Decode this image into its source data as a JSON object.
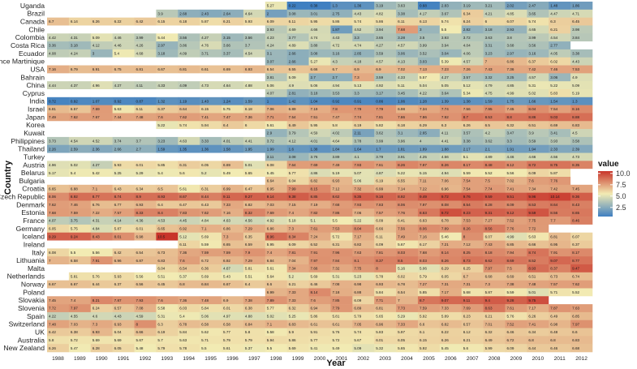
{
  "chart_data": {
    "type": "heatmap",
    "title": "",
    "xlabel": "Year",
    "ylabel": "Country",
    "legend_title": "value",
    "legend_ticks": [
      2.5,
      5.0,
      7.5,
      10.0
    ],
    "legend_tick_labels": [
      "2.5",
      "5.0",
      "7.5",
      "10.0"
    ],
    "value_range": [
      0.5,
      10.5
    ],
    "colors": {
      "low": "#3f7fc1",
      "mid": "#f2ebb3",
      "high": "#c8342a"
    },
    "years": [
      "1988",
      "1989",
      "1990",
      "1991",
      "1992",
      "1993",
      "1994",
      "1995",
      "1996",
      "1997",
      "1998",
      "1999",
      "2000",
      "2001",
      "2002",
      "2003",
      "2004",
      "2005",
      "2006",
      "2007",
      "2008",
      "2009",
      "2010",
      "2011",
      "2012"
    ],
    "countries": [
      "Uganda",
      "Brazil",
      "Canada",
      "Chile",
      "Colombia",
      "Costa Rica",
      "Ecuador",
      "France Martinique",
      "USA",
      "Bahrain",
      "China",
      "Cyprus",
      "India",
      "Israel",
      "Japan",
      "Korea",
      "Kuwait",
      "Philippines",
      "Thailand",
      "Turkey",
      "Austria",
      "Belarus",
      "Bulgaria",
      "Croatia",
      "Czech Republic",
      "Denmark",
      "Estonia",
      "France",
      "Germany",
      "Iceland",
      "Ireland",
      "Italy",
      "Lithuania",
      "Malta",
      "Netherlands",
      "Norway",
      "Poland",
      "Slovakia",
      "Slovenia",
      "Spain",
      "Switzerland",
      "UK",
      "Australia",
      "New Zealand"
    ],
    "values": [
      [
        null,
        null,
        null,
        null,
        null,
        null,
        null,
        null,
        null,
        null,
        null,
        null,
        null,
        null,
        null,
        null,
        null,
        null,
        null,
        null,
        null,
        null,
        null,
        null,
        null
      ],
      [
        null,
        null,
        null,
        null,
        null,
        null,
        null,
        null,
        null,
        null,
        null,
        null,
        null,
        null,
        null,
        null,
        null,
        null,
        null,
        null,
        null,
        null,
        null,
        null,
        null
      ],
      [
        null,
        null,
        null,
        null,
        null,
        null,
        null,
        null,
        null,
        null,
        null,
        null,
        null,
        null,
        null,
        null,
        null,
        null,
        null,
        null,
        null,
        null,
        null,
        null,
        null
      ],
      [
        null,
        null,
        null,
        null,
        null,
        null,
        null,
        null,
        null,
        null,
        null,
        null,
        null,
        null,
        null,
        null,
        null,
        null,
        null,
        null,
        null,
        null,
        null,
        null,
        null
      ],
      [
        null,
        null,
        null,
        null,
        null,
        null,
        null,
        null,
        null,
        null,
        null,
        null,
        null,
        null,
        null,
        null,
        null,
        null,
        null,
        null,
        null,
        null,
        null,
        null,
        null
      ],
      [
        null,
        null,
        null,
        null,
        null,
        null,
        null,
        null,
        null,
        null,
        null,
        null,
        null,
        null,
        null,
        null,
        null,
        null,
        null,
        null,
        null,
        null,
        null,
        null,
        null
      ],
      [
        null,
        null,
        null,
        null,
        null,
        null,
        null,
        null,
        null,
        null,
        null,
        null,
        null,
        null,
        null,
        null,
        null,
        null,
        null,
        null,
        null,
        null,
        null,
        null,
        null
      ],
      [
        null,
        null,
        null,
        null,
        null,
        null,
        null,
        null,
        null,
        null,
        null,
        null,
        null,
        null,
        null,
        null,
        null,
        null,
        null,
        null,
        null,
        null,
        null,
        null,
        null
      ],
      [
        null,
        null,
        null,
        null,
        null,
        null,
        null,
        null,
        null,
        null,
        null,
        null,
        null,
        null,
        null,
        null,
        null,
        null,
        null,
        null,
        null,
        null,
        null,
        null,
        null
      ],
      [
        null,
        null,
        null,
        null,
        null,
        null,
        null,
        null,
        null,
        null,
        null,
        null,
        null,
        null,
        null,
        null,
        null,
        null,
        null,
        null,
        null,
        null,
        null,
        null,
        null
      ],
      [
        null,
        null,
        null,
        null,
        null,
        null,
        null,
        null,
        null,
        null,
        null,
        null,
        null,
        null,
        null,
        null,
        null,
        null,
        null,
        null,
        null,
        null,
        null,
        null,
        null
      ],
      [
        null,
        null,
        null,
        null,
        null,
        null,
        null,
        null,
        null,
        null,
        null,
        null,
        null,
        null,
        null,
        null,
        null,
        null,
        null,
        null,
        null,
        null,
        null,
        null,
        null
      ],
      [
        null,
        null,
        null,
        null,
        null,
        null,
        null,
        null,
        null,
        null,
        null,
        null,
        null,
        null,
        null,
        null,
        null,
        null,
        null,
        null,
        null,
        null,
        null,
        null,
        null
      ],
      [
        null,
        null,
        null,
        null,
        null,
        null,
        null,
        null,
        null,
        null,
        null,
        null,
        null,
        null,
        null,
        null,
        null,
        null,
        null,
        null,
        null,
        null,
        null,
        null,
        null
      ],
      [
        null,
        null,
        null,
        null,
        null,
        null,
        null,
        null,
        null,
        null,
        null,
        null,
        null,
        null,
        null,
        null,
        null,
        null,
        null,
        null,
        null,
        null,
        null,
        null,
        null
      ],
      [
        null,
        null,
        null,
        null,
        null,
        null,
        null,
        null,
        null,
        null,
        null,
        null,
        null,
        null,
        null,
        null,
        null,
        null,
        null,
        null,
        null,
        null,
        null,
        null,
        null
      ],
      [
        null,
        null,
        null,
        null,
        null,
        null,
        null,
        null,
        null,
        null,
        null,
        null,
        null,
        null,
        null,
        null,
        null,
        null,
        null,
        null,
        null,
        null,
        null,
        null,
        null
      ],
      [
        null,
        null,
        null,
        null,
        null,
        null,
        null,
        null,
        null,
        null,
        null,
        null,
        null,
        null,
        null,
        null,
        null,
        null,
        null,
        null,
        null,
        null,
        null,
        null,
        null
      ],
      [
        null,
        null,
        null,
        null,
        null,
        null,
        null,
        null,
        null,
        null,
        null,
        null,
        null,
        null,
        null,
        null,
        null,
        null,
        null,
        null,
        null,
        null,
        null,
        null,
        null
      ],
      [
        null,
        null,
        null,
        null,
        null,
        null,
        null,
        null,
        null,
        null,
        null,
        null,
        null,
        null,
        null,
        null,
        null,
        null,
        null,
        null,
        null,
        null,
        null,
        null,
        null
      ],
      [
        null,
        null,
        null,
        null,
        null,
        null,
        null,
        null,
        null,
        null,
        null,
        null,
        null,
        null,
        null,
        null,
        null,
        null,
        null,
        null,
        null,
        null,
        null,
        null,
        null
      ],
      [
        null,
        null,
        null,
        null,
        null,
        null,
        null,
        null,
        null,
        null,
        null,
        null,
        null,
        null,
        null,
        null,
        null,
        null,
        null,
        null,
        null,
        null,
        null,
        null,
        null
      ],
      [
        null,
        null,
        null,
        null,
        null,
        null,
        null,
        null,
        null,
        null,
        null,
        null,
        null,
        null,
        null,
        null,
        null,
        null,
        null,
        null,
        null,
        null,
        null,
        null,
        null
      ],
      [
        null,
        null,
        null,
        null,
        null,
        null,
        null,
        null,
        null,
        null,
        null,
        null,
        null,
        null,
        null,
        null,
        null,
        null,
        null,
        null,
        null,
        null,
        null,
        null,
        null
      ],
      [
        null,
        null,
        null,
        null,
        null,
        null,
        null,
        null,
        null,
        null,
        null,
        null,
        null,
        null,
        null,
        null,
        null,
        null,
        null,
        null,
        null,
        null,
        null,
        null,
        null
      ],
      [
        null,
        null,
        null,
        null,
        null,
        null,
        null,
        null,
        null,
        null,
        null,
        null,
        null,
        null,
        null,
        null,
        null,
        null,
        null,
        null,
        null,
        null,
        null,
        null,
        null
      ],
      [
        null,
        null,
        null,
        null,
        null,
        null,
        null,
        null,
        null,
        null,
        null,
        null,
        null,
        null,
        null,
        null,
        null,
        null,
        null,
        null,
        null,
        null,
        null,
        null,
        null
      ],
      [
        null,
        null,
        null,
        null,
        null,
        null,
        null,
        null,
        null,
        null,
        null,
        null,
        null,
        null,
        null,
        null,
        null,
        null,
        null,
        null,
        null,
        null,
        null,
        null,
        null
      ],
      [
        null,
        null,
        null,
        null,
        null,
        null,
        null,
        null,
        null,
        null,
        null,
        null,
        null,
        null,
        null,
        null,
        null,
        null,
        null,
        null,
        null,
        null,
        null,
        null,
        null
      ],
      [
        null,
        null,
        null,
        null,
        null,
        null,
        null,
        null,
        null,
        null,
        null,
        null,
        null,
        null,
        null,
        null,
        null,
        null,
        null,
        null,
        null,
        null,
        null,
        null,
        null
      ],
      [
        null,
        null,
        null,
        null,
        null,
        null,
        null,
        null,
        null,
        null,
        null,
        null,
        null,
        null,
        null,
        null,
        null,
        null,
        null,
        null,
        null,
        null,
        null,
        null,
        null
      ],
      [
        null,
        null,
        null,
        null,
        null,
        null,
        null,
        null,
        null,
        null,
        null,
        null,
        null,
        null,
        null,
        null,
        null,
        null,
        null,
        null,
        null,
        null,
        null,
        null,
        null
      ],
      [
        null,
        null,
        null,
        null,
        null,
        null,
        null,
        null,
        null,
        null,
        null,
        null,
        null,
        null,
        null,
        null,
        null,
        null,
        null,
        null,
        null,
        null,
        null,
        null,
        null
      ],
      [
        null,
        null,
        null,
        null,
        null,
        null,
        null,
        null,
        null,
        null,
        null,
        null,
        null,
        null,
        null,
        null,
        null,
        null,
        null,
        null,
        null,
        null,
        null,
        null,
        null
      ],
      [
        null,
        null,
        null,
        null,
        null,
        null,
        null,
        null,
        null,
        null,
        null,
        null,
        null,
        null,
        null,
        null,
        null,
        null,
        null,
        null,
        null,
        null,
        null,
        null,
        null
      ],
      [
        null,
        null,
        null,
        null,
        null,
        null,
        null,
        null,
        null,
        null,
        null,
        null,
        null,
        null,
        null,
        null,
        null,
        null,
        null,
        null,
        null,
        null,
        null,
        null,
        null
      ],
      [
        null,
        null,
        null,
        null,
        null,
        null,
        null,
        null,
        null,
        null,
        null,
        null,
        null,
        null,
        null,
        null,
        null,
        null,
        null,
        null,
        null,
        null,
        null,
        null,
        null
      ],
      [
        null,
        null,
        null,
        null,
        null,
        null,
        null,
        null,
        null,
        null,
        null,
        null,
        null,
        null,
        null,
        null,
        null,
        null,
        null,
        null,
        null,
        null,
        null,
        null,
        null
      ],
      [
        null,
        null,
        null,
        null,
        null,
        null,
        null,
        null,
        null,
        null,
        null,
        null,
        null,
        null,
        null,
        null,
        null,
        null,
        null,
        null,
        null,
        null,
        null,
        null,
        null
      ],
      [
        null,
        null,
        null,
        null,
        null,
        null,
        null,
        null,
        null,
        null,
        null,
        null,
        null,
        null,
        null,
        null,
        null,
        null,
        null,
        null,
        null,
        null,
        null,
        null,
        null
      ],
      [
        null,
        null,
        null,
        null,
        null,
        null,
        null,
        null,
        null,
        null,
        null,
        null,
        null,
        null,
        null,
        null,
        null,
        null,
        null,
        null,
        null,
        null,
        null,
        null,
        null
      ],
      [
        null,
        null,
        null,
        null,
        null,
        null,
        null,
        null,
        null,
        null,
        null,
        null,
        null,
        null,
        null,
        null,
        null,
        null,
        null,
        null,
        null,
        null,
        null,
        null,
        null
      ],
      [
        null,
        null,
        null,
        null,
        null,
        null,
        null,
        null,
        null,
        null,
        null,
        null,
        null,
        null,
        null,
        null,
        null,
        null,
        null,
        null,
        null,
        null,
        null,
        null,
        null
      ],
      [
        null,
        null,
        null,
        null,
        null,
        null,
        null,
        null,
        null,
        null,
        null,
        null,
        null,
        null,
        null,
        null,
        null,
        null,
        null,
        null,
        null,
        null,
        null,
        null,
        null
      ]
    ]
  }
}
